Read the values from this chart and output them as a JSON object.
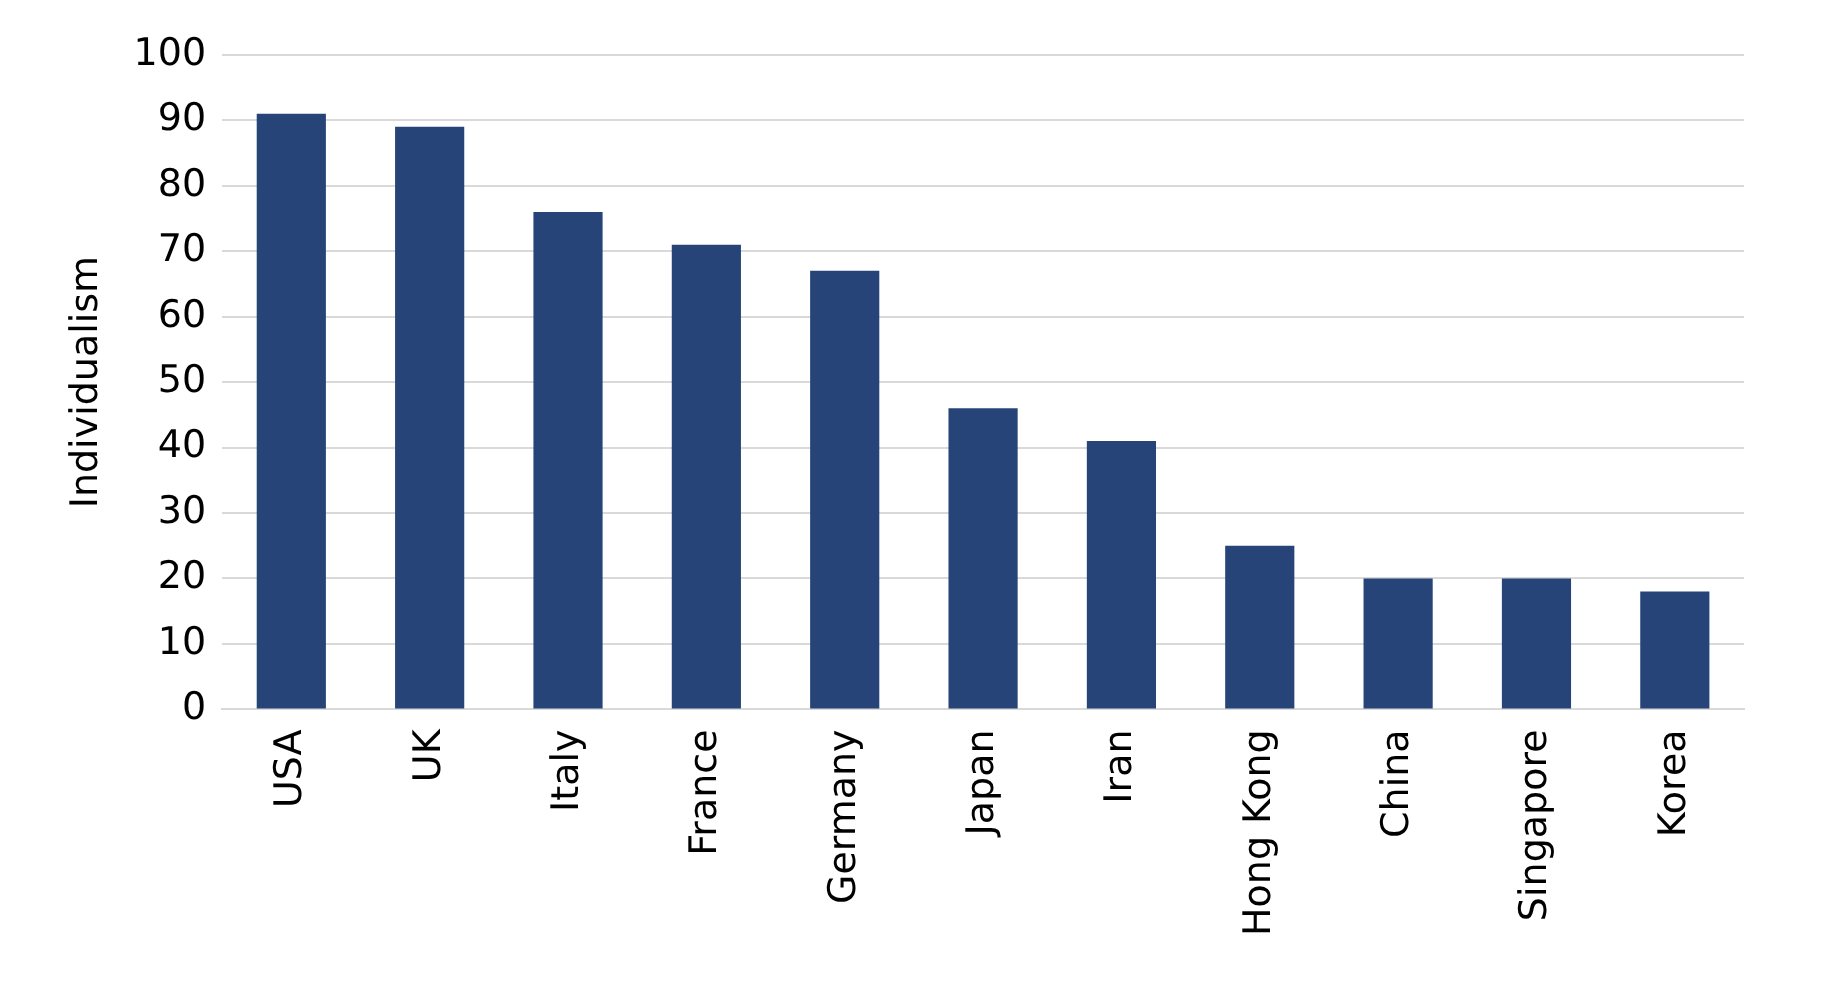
{
  "chart_data": {
    "type": "bar",
    "ylabel": "Individualism",
    "categories": [
      "USA",
      "UK",
      "Italy",
      "France",
      "Germany",
      "Japan",
      "Iran",
      "Hong Kong",
      "China",
      "Singapore",
      "Korea"
    ],
    "values": [
      91,
      89,
      76,
      71,
      67,
      46,
      41,
      25,
      20,
      20,
      18
    ],
    "color": "#264478",
    "ylim": [
      0,
      100
    ],
    "yticks": [
      0,
      10,
      20,
      30,
      40,
      50,
      60,
      70,
      80,
      90,
      100
    ],
    "grid": "y"
  }
}
